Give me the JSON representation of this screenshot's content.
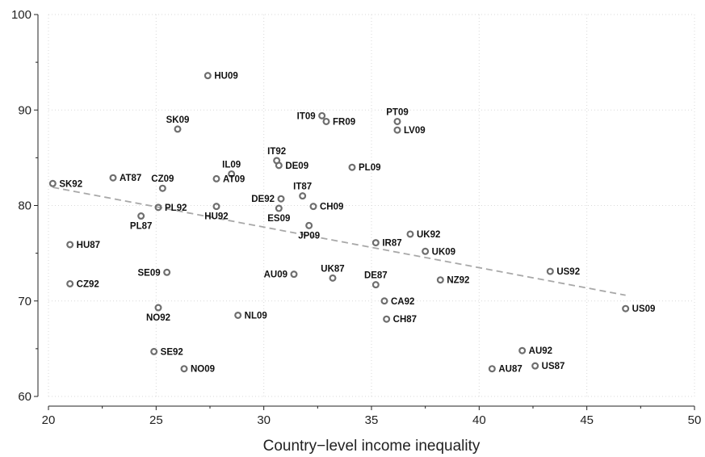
{
  "chart_data": {
    "type": "scatter",
    "xlabel": "Country−level income inequality",
    "ylabel": "",
    "xlim": [
      20,
      50
    ],
    "ylim": [
      60,
      100
    ],
    "xticks": [
      20,
      25,
      30,
      35,
      40,
      45,
      50
    ],
    "yticks": [
      60,
      70,
      80,
      90,
      100
    ],
    "grid": true,
    "colors": {
      "marker": "#6e6e6e",
      "fit_line": "#a8a8a8"
    },
    "fit_line": {
      "x": [
        20.2,
        46.8
      ],
      "y": [
        81.9,
        70.6
      ]
    },
    "points": [
      {
        "label": "HU09",
        "x": 27.4,
        "y": 93.6,
        "pos": "right"
      },
      {
        "label": "SK09",
        "x": 26.0,
        "y": 88.0,
        "pos": "above"
      },
      {
        "label": "IT09",
        "x": 32.7,
        "y": 89.4,
        "pos": "left"
      },
      {
        "label": "FR09",
        "x": 32.9,
        "y": 88.8,
        "pos": "right"
      },
      {
        "label": "PT09",
        "x": 36.2,
        "y": 88.8,
        "pos": "above"
      },
      {
        "label": "LV09",
        "x": 36.2,
        "y": 87.9,
        "pos": "right"
      },
      {
        "label": "IT92",
        "x": 30.6,
        "y": 84.7,
        "pos": "above"
      },
      {
        "label": "DE09",
        "x": 30.7,
        "y": 84.2,
        "pos": "right"
      },
      {
        "label": "PL09",
        "x": 34.1,
        "y": 84.0,
        "pos": "right"
      },
      {
        "label": "IL09",
        "x": 28.5,
        "y": 83.3,
        "pos": "above"
      },
      {
        "label": "AT09",
        "x": 27.8,
        "y": 82.8,
        "pos": "right"
      },
      {
        "label": "AT87",
        "x": 23.0,
        "y": 82.9,
        "pos": "right"
      },
      {
        "label": "CZ09",
        "x": 25.3,
        "y": 81.8,
        "pos": "above"
      },
      {
        "label": "SK92",
        "x": 20.2,
        "y": 82.3,
        "pos": "right"
      },
      {
        "label": "IT87",
        "x": 31.8,
        "y": 81.0,
        "pos": "above"
      },
      {
        "label": "DE92",
        "x": 30.8,
        "y": 80.7,
        "pos": "left"
      },
      {
        "label": "ES09",
        "x": 30.7,
        "y": 79.7,
        "pos": "below"
      },
      {
        "label": "CH09",
        "x": 32.3,
        "y": 79.9,
        "pos": "right"
      },
      {
        "label": "PL92",
        "x": 25.1,
        "y": 79.8,
        "pos": "right"
      },
      {
        "label": "HU92",
        "x": 27.8,
        "y": 79.9,
        "pos": "below"
      },
      {
        "label": "PL87",
        "x": 24.3,
        "y": 78.9,
        "pos": "below"
      },
      {
        "label": "JP09",
        "x": 32.1,
        "y": 77.9,
        "pos": "below"
      },
      {
        "label": "UK92",
        "x": 36.8,
        "y": 77.0,
        "pos": "right"
      },
      {
        "label": "IR87",
        "x": 35.2,
        "y": 76.1,
        "pos": "right"
      },
      {
        "label": "HU87",
        "x": 21.0,
        "y": 75.9,
        "pos": "right"
      },
      {
        "label": "UK09",
        "x": 37.5,
        "y": 75.2,
        "pos": "right"
      },
      {
        "label": "US92",
        "x": 43.3,
        "y": 73.1,
        "pos": "right"
      },
      {
        "label": "SE09",
        "x": 25.5,
        "y": 73.0,
        "pos": "left"
      },
      {
        "label": "AU09",
        "x": 31.4,
        "y": 72.8,
        "pos": "left"
      },
      {
        "label": "UK87",
        "x": 33.2,
        "y": 72.4,
        "pos": "above"
      },
      {
        "label": "DE87",
        "x": 35.2,
        "y": 71.7,
        "pos": "above"
      },
      {
        "label": "NZ92",
        "x": 38.2,
        "y": 72.2,
        "pos": "right"
      },
      {
        "label": "CZ92",
        "x": 21.0,
        "y": 71.8,
        "pos": "right"
      },
      {
        "label": "CA92",
        "x": 35.6,
        "y": 70.0,
        "pos": "right"
      },
      {
        "label": "NO92",
        "x": 25.1,
        "y": 69.3,
        "pos": "below"
      },
      {
        "label": "US09",
        "x": 46.8,
        "y": 69.2,
        "pos": "right"
      },
      {
        "label": "NL09",
        "x": 28.8,
        "y": 68.5,
        "pos": "right"
      },
      {
        "label": "CH87",
        "x": 35.7,
        "y": 68.1,
        "pos": "right"
      },
      {
        "label": "SE92",
        "x": 24.9,
        "y": 64.7,
        "pos": "right"
      },
      {
        "label": "AU92",
        "x": 42.0,
        "y": 64.8,
        "pos": "right"
      },
      {
        "label": "NO09",
        "x": 26.3,
        "y": 62.9,
        "pos": "right"
      },
      {
        "label": "AU87",
        "x": 40.6,
        "y": 62.9,
        "pos": "right"
      },
      {
        "label": "US87",
        "x": 42.6,
        "y": 63.2,
        "pos": "right"
      }
    ]
  }
}
